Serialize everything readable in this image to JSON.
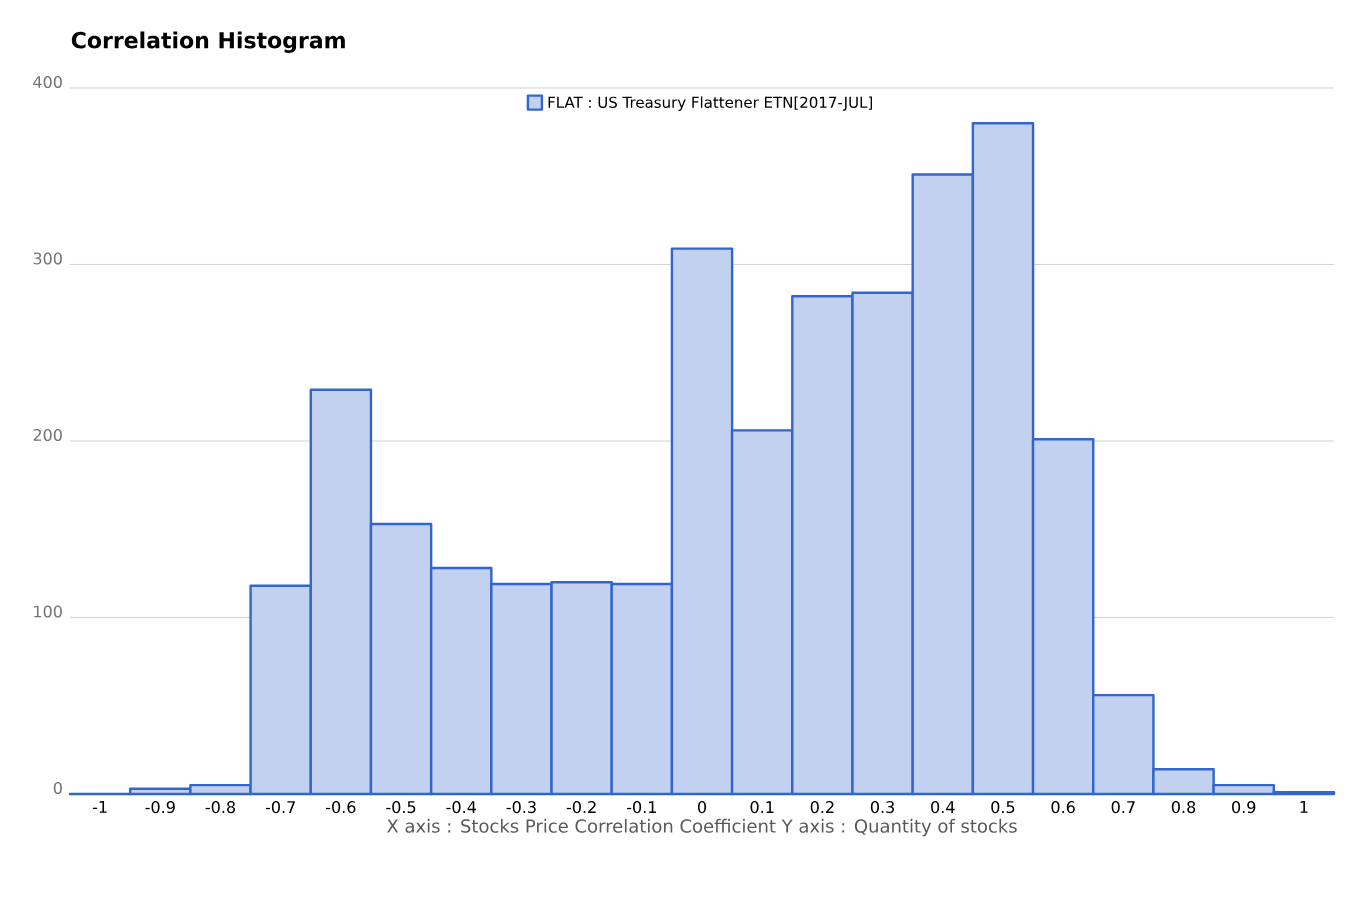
{
  "chart_data": {
    "type": "histogram",
    "title": "Correlation Histogram",
    "xlabel": "X axis : Stocks Price Correlation Coefficient  Y axis : Quantity of stocks",
    "bins": [
      -1.05,
      -0.95,
      -0.85,
      -0.75,
      -0.65,
      -0.55,
      -0.45,
      -0.35,
      -0.25,
      -0.15,
      -0.05,
      0.05,
      0.15,
      0.25,
      0.35,
      0.45,
      0.55,
      0.65,
      0.75,
      0.85,
      0.95,
      1.05
    ],
    "series": [
      {
        "name": "FLAT : US Treasury Flattener ETN[2017-JUL]",
        "color": "#3366cc",
        "values": [
          0,
          3,
          5,
          118,
          229,
          153,
          128,
          119,
          120,
          119,
          309,
          206,
          282,
          284,
          351,
          380,
          201,
          56,
          14,
          5,
          1
        ]
      }
    ],
    "xlim": [
      -1.05,
      1.05
    ],
    "ylim": [
      0,
      400
    ],
    "xticks": [
      -1,
      -0.9,
      -0.8,
      -0.7,
      -0.6,
      -0.5,
      -0.4,
      -0.3,
      -0.2,
      -0.1,
      0,
      0.1,
      0.2,
      0.3,
      0.4,
      0.5,
      0.6,
      0.7,
      0.8,
      0.9,
      1
    ],
    "yticks": [
      0,
      100,
      200,
      300,
      400
    ],
    "grid": "y",
    "legend": "top"
  }
}
